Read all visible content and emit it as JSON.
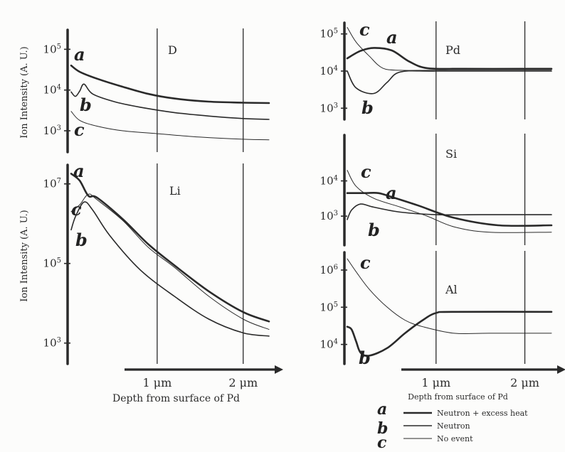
{
  "chart_data": [
    {
      "type": "line",
      "element": "D",
      "ylabel": "Ion Intensity (A. U.)",
      "yscale": "log",
      "ylim": [
        300,
        300000
      ],
      "yticks": [
        {
          "v": 100000,
          "label": "10^5"
        },
        {
          "v": 10000,
          "label": "10^4"
        },
        {
          "v": 1000,
          "label": "10^3"
        }
      ],
      "xlim": [
        0,
        2.3
      ],
      "ref_lines": [
        1,
        2
      ],
      "series": [
        {
          "id": "a",
          "x": [
            0,
            0.1,
            0.3,
            0.6,
            0.9,
            1.2,
            1.6,
            2.0,
            2.3
          ],
          "values": [
            40000,
            28000,
            19000,
            12000,
            8000,
            6200,
            5200,
            4900,
            4800
          ]
        },
        {
          "id": "b",
          "x": [
            0,
            0.05,
            0.1,
            0.15,
            0.25,
            0.5,
            0.8,
            1.2,
            1.6,
            2.0,
            2.3
          ],
          "values": [
            9000,
            7000,
            9500,
            14000,
            8000,
            5200,
            3800,
            2800,
            2300,
            2000,
            1900
          ]
        },
        {
          "id": "c",
          "x": [
            0,
            0.1,
            0.3,
            0.6,
            1.0,
            1.5,
            2.0,
            2.3
          ],
          "values": [
            3000,
            1800,
            1300,
            1000,
            850,
            700,
            620,
            600
          ]
        }
      ]
    },
    {
      "type": "line",
      "element": "Li",
      "ylabel": "Ion Intensity (A. U.)",
      "yscale": "log",
      "ylim": [
        300,
        30000000
      ],
      "yticks": [
        {
          "v": 10000000,
          "label": "10^7"
        },
        {
          "v": 100000,
          "label": "10^5"
        },
        {
          "v": 1000,
          "label": "10^3"
        }
      ],
      "xlim": [
        0,
        2.3
      ],
      "ref_lines": [
        1,
        2
      ],
      "xtick_labels": [
        "1 μm",
        "2 μm"
      ],
      "xlabel": "Depth from surface of Pd",
      "series": [
        {
          "id": "a",
          "x": [
            0,
            0.1,
            0.2,
            0.3,
            0.6,
            0.9,
            1.2,
            1.6,
            2.0,
            2.3
          ],
          "values": [
            18000000,
            12000000,
            5000000,
            4500000,
            1300000,
            300000,
            90000,
            20000,
            6000,
            3500
          ]
        },
        {
          "id": "b",
          "x": [
            0,
            0.05,
            0.15,
            0.25,
            0.45,
            0.8,
            1.2,
            1.6,
            2.0,
            2.3
          ],
          "values": [
            700000,
            1500000,
            3500000,
            2200000,
            500000,
            70000,
            15000,
            4000,
            1800,
            1500
          ]
        },
        {
          "id": "c",
          "x": [
            0,
            0.1,
            0.2,
            0.3,
            0.6,
            0.9,
            1.2,
            1.6,
            2.0,
            2.3
          ],
          "values": [
            2000000,
            3000000,
            5500000,
            4000000,
            1200000,
            250000,
            80000,
            15000,
            4000,
            2200
          ]
        }
      ]
    },
    {
      "type": "line",
      "element": "Pd",
      "yscale": "log",
      "ylim": [
        500,
        200000
      ],
      "yticks": [
        {
          "v": 100000,
          "label": "10^5"
        },
        {
          "v": 10000,
          "label": "10^4"
        },
        {
          "v": 1000,
          "label": "10^3"
        }
      ],
      "xlim": [
        0,
        2.3
      ],
      "ref_lines": [
        1,
        2
      ],
      "series": [
        {
          "id": "a",
          "x": [
            0,
            0.15,
            0.3,
            0.5,
            0.7,
            0.9,
            1.3,
            2.0,
            2.3
          ],
          "values": [
            22000,
            35000,
            42000,
            36000,
            18000,
            12000,
            11500,
            11500,
            11500
          ]
        },
        {
          "id": "b",
          "x": [
            0,
            0.1,
            0.3,
            0.45,
            0.6,
            1.0,
            2.0,
            2.3
          ],
          "values": [
            10000,
            3500,
            2500,
            5000,
            9500,
            10000,
            10000,
            10000
          ]
        },
        {
          "id": "c",
          "x": [
            0,
            0.1,
            0.25,
            0.4,
            0.6,
            1.0,
            2.0,
            2.3
          ],
          "values": [
            150000,
            60000,
            25000,
            12000,
            10500,
            10500,
            10500,
            10500
          ]
        }
      ]
    },
    {
      "type": "line",
      "element": "Si",
      "yscale": "log",
      "ylim": [
        150,
        200000
      ],
      "yticks": [
        {
          "v": 10000,
          "label": "10^4"
        },
        {
          "v": 1000,
          "label": "10^3"
        }
      ],
      "xlim": [
        0,
        2.3
      ],
      "ref_lines": [
        1,
        2
      ],
      "series": [
        {
          "id": "a",
          "x": [
            0,
            0.2,
            0.35,
            0.5,
            0.8,
            1.2,
            1.7,
            2.3
          ],
          "values": [
            4500,
            4500,
            4500,
            3500,
            2000,
            900,
            550,
            550
          ]
        },
        {
          "id": "b",
          "x": [
            0,
            0.05,
            0.15,
            0.3,
            0.6,
            1.0,
            1.5,
            2.3
          ],
          "values": [
            800,
            1500,
            2200,
            1800,
            1300,
            1100,
            1100,
            1100
          ]
        },
        {
          "id": "c",
          "x": [
            0,
            0.1,
            0.3,
            0.6,
            0.9,
            1.2,
            1.6,
            2.3
          ],
          "values": [
            20000,
            7000,
            3200,
            1800,
            1000,
            500,
            350,
            350
          ]
        }
      ]
    },
    {
      "type": "line",
      "element": "Al",
      "yscale": "log",
      "ylim": [
        3000,
        3000000
      ],
      "yticks": [
        {
          "v": 1000000,
          "label": "10^6"
        },
        {
          "v": 100000,
          "label": "10^5"
        },
        {
          "v": 10000,
          "label": "10^4"
        }
      ],
      "xlim": [
        0,
        2.3
      ],
      "ref_lines": [
        1,
        2
      ],
      "xtick_labels": [
        "1 μm",
        "2 μm"
      ],
      "xlabel": "Depth from surface of Pd",
      "series": [
        {
          "id": "a",
          "x": [
            0,
            0.05,
            0.1,
            0.15,
            0.25,
            0.45,
            0.65,
            0.85,
            1.0,
            1.2,
            2.3
          ],
          "values": [
            30000,
            25000,
            12000,
            6000,
            5000,
            8000,
            20000,
            45000,
            70000,
            75000,
            75000
          ]
        },
        {
          "id": "b",
          "x": [
            0,
            0.05,
            0.1,
            0.15,
            0.25,
            0.45,
            0.65,
            0.85,
            1.0,
            1.2,
            2.3
          ],
          "values": [
            30000,
            25000,
            12000,
            6000,
            5000,
            8000,
            20000,
            45000,
            70000,
            75000,
            75000
          ]
        },
        {
          "id": "c",
          "x": [
            0,
            0.1,
            0.25,
            0.45,
            0.65,
            0.85,
            1.2,
            1.6,
            2.3
          ],
          "values": [
            2000000,
            900000,
            300000,
            100000,
            45000,
            30000,
            20000,
            20000,
            20000
          ]
        }
      ]
    }
  ],
  "legend": [
    {
      "mark": "a",
      "label": "Neutron + excess heat"
    },
    {
      "mark": "b",
      "label": "Neutron"
    },
    {
      "mark": "c",
      "label": "No event"
    }
  ],
  "colors": {
    "ink": "#2a2a2a",
    "paper": "#fcfcfb"
  }
}
